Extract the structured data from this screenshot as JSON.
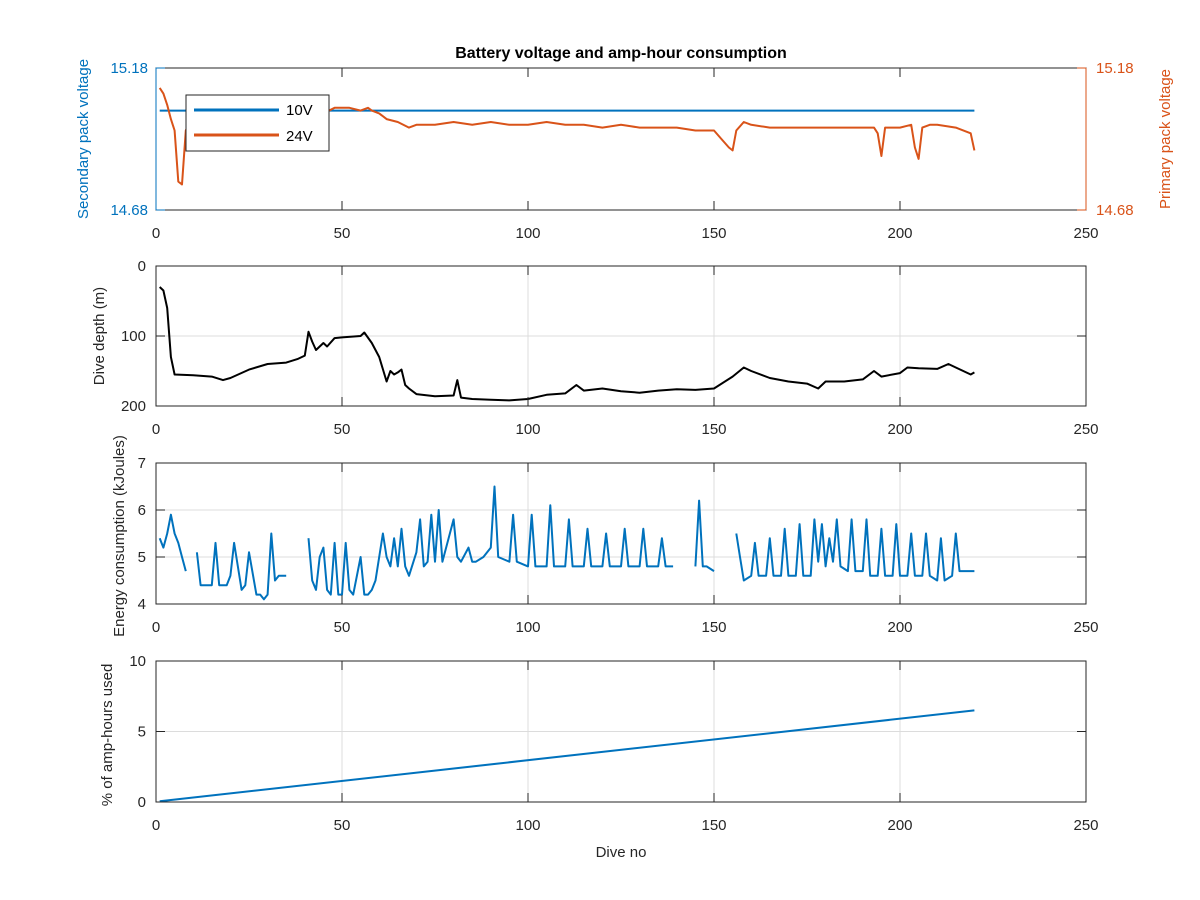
{
  "figure": {
    "title": "Battery voltage and amp-hour consumption",
    "shared_xlabel": "Dive no"
  },
  "chart_data": [
    {
      "type": "line",
      "title": "Battery voltage and amp-hour consumption",
      "xlabel": "",
      "ylabel_left": "Secondary pack voltage",
      "ylabel_right": "Primary pack voltage",
      "xlim": [
        0,
        250
      ],
      "xticks": [
        0,
        50,
        100,
        150,
        200,
        250
      ],
      "ylim_left": [
        14.68,
        15.18
      ],
      "yticks_left": [
        "14.68",
        "15.18"
      ],
      "ylim_right": [
        14.68,
        15.18
      ],
      "yticks_right": [
        "14.68",
        "15.18"
      ],
      "grid": false,
      "legend_position": "top-left",
      "colors": {
        "left_axis": "#0072BD",
        "right_axis": "#D95319"
      },
      "series": [
        {
          "name": "10V",
          "axis": "left",
          "color": "#0072BD",
          "x": [
            1,
            220
          ],
          "y": [
            15.03,
            15.03
          ]
        },
        {
          "name": "24V",
          "axis": "right",
          "color": "#D95319",
          "x": [
            1,
            2,
            3,
            4,
            5,
            6,
            7,
            8,
            9,
            10,
            15,
            20,
            25,
            30,
            35,
            40,
            45,
            48,
            52,
            55,
            57,
            58,
            60,
            62,
            65,
            68,
            70,
            75,
            80,
            85,
            90,
            95,
            100,
            105,
            110,
            115,
            120,
            125,
            130,
            135,
            140,
            145,
            148,
            150,
            152,
            154,
            155,
            156,
            158,
            160,
            165,
            170,
            175,
            180,
            185,
            190,
            193,
            194,
            195,
            196,
            198,
            200,
            203,
            204,
            205,
            206,
            208,
            210,
            215,
            219,
            220
          ],
          "y": [
            15.11,
            15.09,
            15.05,
            15.0,
            14.96,
            14.78,
            14.77,
            14.96,
            14.99,
            15.03,
            15.04,
            15.03,
            15.02,
            15.03,
            15.02,
            15.03,
            15.02,
            15.04,
            15.04,
            15.03,
            15.04,
            15.03,
            15.02,
            15.0,
            14.99,
            14.97,
            14.98,
            14.98,
            14.99,
            14.98,
            14.99,
            14.98,
            14.98,
            14.99,
            14.98,
            14.98,
            14.97,
            14.98,
            14.97,
            14.97,
            14.97,
            14.96,
            14.96,
            14.96,
            14.93,
            14.9,
            14.89,
            14.96,
            14.99,
            14.98,
            14.97,
            14.97,
            14.97,
            14.97,
            14.97,
            14.97,
            14.97,
            14.95,
            14.87,
            14.97,
            14.97,
            14.97,
            14.98,
            14.9,
            14.86,
            14.97,
            14.98,
            14.98,
            14.97,
            14.95,
            14.89
          ]
        }
      ]
    },
    {
      "type": "line",
      "xlabel": "",
      "ylabel": "Dive depth (m)",
      "xlim": [
        0,
        250
      ],
      "xticks": [
        0,
        50,
        100,
        150,
        200,
        250
      ],
      "ylim": [
        0,
        200
      ],
      "y_reversed": true,
      "yticks": [
        0,
        100,
        200
      ],
      "grid": true,
      "series": [
        {
          "color": "#000000",
          "x": [
            1,
            2,
            3,
            4,
            5,
            10,
            15,
            18,
            20,
            25,
            30,
            35,
            38,
            40,
            41,
            42,
            43,
            45,
            46,
            48,
            50,
            55,
            56,
            58,
            60,
            62,
            63,
            64,
            65,
            66,
            67,
            68,
            70,
            75,
            80,
            81,
            82,
            85,
            90,
            95,
            100,
            105,
            110,
            113,
            115,
            120,
            125,
            130,
            135,
            140,
            145,
            150,
            155,
            158,
            160,
            165,
            170,
            175,
            178,
            180,
            185,
            190,
            193,
            195,
            200,
            202,
            205,
            210,
            213,
            215,
            219,
            220
          ],
          "y": [
            30,
            35,
            60,
            130,
            155,
            156,
            158,
            163,
            160,
            148,
            140,
            138,
            133,
            128,
            94,
            108,
            120,
            110,
            115,
            103,
            102,
            100,
            95,
            110,
            130,
            165,
            150,
            155,
            152,
            148,
            170,
            175,
            183,
            186,
            185,
            163,
            188,
            190,
            191,
            192,
            190,
            184,
            182,
            170,
            178,
            175,
            179,
            181,
            178,
            176,
            177,
            175,
            158,
            145,
            150,
            160,
            165,
            168,
            175,
            165,
            165,
            162,
            150,
            158,
            153,
            145,
            146,
            147,
            140,
            145,
            155,
            152
          ]
        }
      ]
    },
    {
      "type": "line",
      "xlabel": "",
      "ylabel": "Energy consumption (kJoules)",
      "xlim": [
        0,
        250
      ],
      "xticks": [
        0,
        50,
        100,
        150,
        200,
        250
      ],
      "ylim": [
        4,
        7
      ],
      "yticks": [
        4,
        5,
        6,
        7
      ],
      "grid": true,
      "series": [
        {
          "color": "#0072BD",
          "segments": [
            {
              "x": [
                1,
                2,
                3,
                4,
                5,
                6,
                7,
                8
              ],
              "y": [
                5.4,
                5.2,
                5.5,
                5.9,
                5.5,
                5.3,
                5.0,
                4.7
              ]
            },
            {
              "x": [
                11,
                12,
                13,
                15,
                16,
                17,
                19,
                20,
                21,
                23,
                24,
                25,
                27,
                28,
                29,
                30,
                31,
                32,
                33,
                35
              ],
              "y": [
                5.1,
                4.4,
                4.4,
                4.4,
                5.3,
                4.4,
                4.4,
                4.6,
                5.3,
                4.3,
                4.4,
                5.1,
                4.2,
                4.2,
                4.1,
                4.2,
                5.5,
                4.5,
                4.6,
                4.6
              ]
            },
            {
              "x": [
                41,
                42,
                43,
                44,
                45,
                46,
                47,
                48,
                49,
                50,
                51,
                52,
                53,
                55,
                56,
                57,
                58,
                59,
                61,
                62,
                63,
                64,
                65,
                66,
                67,
                68,
                70,
                71,
                72,
                73,
                74,
                75,
                76,
                77,
                80,
                81,
                82,
                84,
                85,
                86,
                88,
                90,
                91,
                92,
                95,
                96,
                97,
                100,
                101,
                102,
                105,
                106,
                107,
                110,
                111,
                112,
                115,
                116,
                117,
                120,
                121,
                122,
                125,
                126,
                127,
                130,
                131,
                132,
                135,
                136,
                137,
                139
              ],
              "y": [
                5.4,
                4.5,
                4.3,
                5.0,
                5.2,
                4.3,
                4.2,
                5.3,
                4.2,
                4.2,
                5.3,
                4.3,
                4.2,
                5.0,
                4.2,
                4.2,
                4.3,
                4.5,
                5.5,
                5.0,
                4.8,
                5.4,
                4.8,
                5.6,
                4.8,
                4.6,
                5.1,
                5.8,
                4.8,
                4.9,
                5.9,
                4.9,
                6.0,
                4.9,
                5.8,
                5.0,
                4.9,
                5.2,
                4.9,
                4.9,
                5.0,
                5.2,
                6.5,
                5.0,
                4.9,
                5.9,
                4.9,
                4.8,
                5.9,
                4.8,
                4.8,
                6.1,
                4.8,
                4.8,
                5.8,
                4.8,
                4.8,
                5.6,
                4.8,
                4.8,
                5.5,
                4.8,
                4.8,
                5.6,
                4.8,
                4.8,
                5.6,
                4.8,
                4.8,
                5.4,
                4.8,
                4.8
              ]
            },
            {
              "x": [
                145,
                146,
                147,
                148,
                150
              ],
              "y": [
                4.8,
                6.2,
                4.8,
                4.8,
                4.7
              ]
            },
            {
              "x": [
                156,
                157,
                158,
                160,
                161,
                162,
                164,
                165,
                166,
                168,
                169,
                170,
                172,
                173,
                174,
                176,
                177,
                178,
                179,
                180,
                181,
                182,
                183,
                184,
                186,
                187,
                188,
                190,
                191,
                192,
                194,
                195,
                196,
                198,
                199,
                200,
                202,
                203,
                204,
                206,
                207,
                208,
                210,
                211,
                212,
                214,
                215,
                216,
                218,
                219,
                220
              ],
              "y": [
                5.5,
                5.0,
                4.5,
                4.6,
                5.3,
                4.6,
                4.6,
                5.4,
                4.6,
                4.6,
                5.6,
                4.6,
                4.6,
                5.7,
                4.6,
                4.6,
                5.8,
                4.9,
                5.7,
                4.8,
                5.4,
                4.9,
                5.8,
                4.8,
                4.7,
                5.8,
                4.7,
                4.7,
                5.8,
                4.6,
                4.6,
                5.6,
                4.6,
                4.6,
                5.7,
                4.6,
                4.6,
                5.5,
                4.6,
                4.6,
                5.5,
                4.6,
                4.5,
                5.4,
                4.5,
                4.6,
                5.5,
                4.7,
                4.7,
                4.7,
                4.7
              ]
            }
          ]
        }
      ]
    },
    {
      "type": "line",
      "xlabel": "Dive no",
      "ylabel": "% of amp-hours used",
      "xlim": [
        0,
        250
      ],
      "xticks": [
        0,
        50,
        100,
        150,
        200,
        250
      ],
      "ylim": [
        0,
        10
      ],
      "yticks": [
        0,
        5,
        10
      ],
      "grid": true,
      "series": [
        {
          "color": "#0072BD",
          "x": [
            1,
            220
          ],
          "y": [
            0.05,
            6.5
          ]
        }
      ]
    }
  ]
}
